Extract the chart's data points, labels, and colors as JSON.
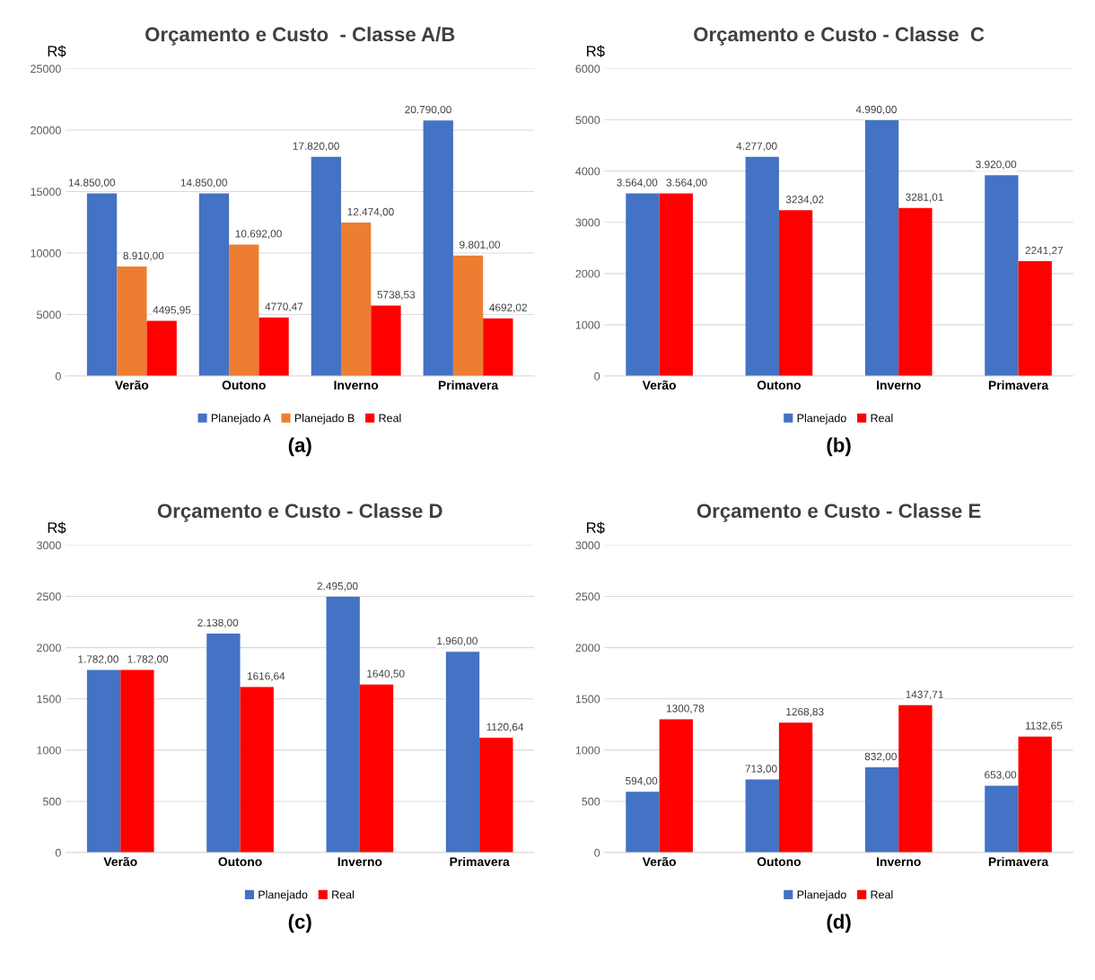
{
  "chart_data": [
    {
      "type": "bar",
      "title": "Orçamento e Custo  - Classe A/B",
      "ylabel": "R$",
      "categories": [
        "Verão",
        "Outono",
        "Inverno",
        "Primavera"
      ],
      "ylim": [
        0,
        25000
      ],
      "yticks": [
        0,
        5000,
        10000,
        15000,
        20000,
        25000
      ],
      "grid": "y",
      "legend": "bottom",
      "annotations": [
        "(a)"
      ],
      "series": [
        {
          "name": "Planejado A",
          "color": "#4472c4",
          "values": [
            14850,
            14850,
            17820,
            20790
          ],
          "value_labels": [
            "14.850,00",
            "14.850,00",
            "17.820,00",
            "20.790,00"
          ]
        },
        {
          "name": "Planejado B",
          "color": "#ed7d31",
          "values": [
            8910,
            10692,
            12474,
            9801
          ],
          "value_labels": [
            "8.910,00",
            "10.692,00",
            "12.474,00",
            "9.801,00"
          ]
        },
        {
          "name": "Real",
          "color": "#ff0000",
          "values": [
            4495.95,
            4770.47,
            5738.53,
            4692.02
          ],
          "value_labels": [
            "4495,95",
            "4770,47",
            "5738,53",
            "4692,02"
          ]
        }
      ]
    },
    {
      "type": "bar",
      "title": "Orçamento e Custo - Classe  C",
      "ylabel": "R$",
      "categories": [
        "Verão",
        "Outono",
        "Inverno",
        "Primavera"
      ],
      "ylim": [
        0,
        6000
      ],
      "yticks": [
        0,
        1000,
        2000,
        3000,
        4000,
        5000,
        6000
      ],
      "grid": "y",
      "legend": "bottom",
      "annotations": [
        "(b)"
      ],
      "series": [
        {
          "name": "Planejado",
          "color": "#4472c4",
          "values": [
            3564,
            4277,
            4990,
            3920
          ],
          "value_labels": [
            "3.564,00",
            "4.277,00",
            "4.990,00",
            "3.920,00"
          ]
        },
        {
          "name": "Real",
          "color": "#ff0000",
          "values": [
            3564,
            3234.02,
            3281.01,
            2241.27
          ],
          "value_labels": [
            "3.564,00",
            "3234,02",
            "3281,01",
            "2241,27"
          ]
        }
      ]
    },
    {
      "type": "bar",
      "title": "Orçamento e Custo - Classe D",
      "ylabel": "R$",
      "categories": [
        "Verão",
        "Outono",
        "Inverno",
        "Primavera"
      ],
      "ylim": [
        0,
        3000
      ],
      "yticks": [
        0,
        500,
        1000,
        1500,
        2000,
        2500,
        3000
      ],
      "grid": "y",
      "legend": "bottom",
      "annotations": [
        "(c)"
      ],
      "series": [
        {
          "name": "Planejado",
          "color": "#4472c4",
          "values": [
            1782,
            2138,
            2495,
            1960
          ],
          "value_labels": [
            "1.782,00",
            "2.138,00",
            "2.495,00",
            "1.960,00"
          ]
        },
        {
          "name": "Real",
          "color": "#ff0000",
          "values": [
            1782,
            1616.64,
            1640.5,
            1120.64
          ],
          "value_labels": [
            "1.782,00",
            "1616,64",
            "1640,50",
            "1120,64"
          ]
        }
      ]
    },
    {
      "type": "bar",
      "title": "Orçamento e Custo - Classe E",
      "ylabel": "R$",
      "categories": [
        "Verão",
        "Outono",
        "Inverno",
        "Primavera"
      ],
      "ylim": [
        0,
        3000
      ],
      "yticks": [
        0,
        500,
        1000,
        1500,
        2000,
        2500,
        3000
      ],
      "grid": "y",
      "legend": "bottom",
      "annotations": [
        "(d)"
      ],
      "series": [
        {
          "name": "Planejado",
          "color": "#4472c4",
          "values": [
            594,
            713,
            832,
            653
          ],
          "value_labels": [
            "594,00",
            "713,00",
            "832,00",
            "653,00"
          ]
        },
        {
          "name": "Real",
          "color": "#ff0000",
          "values": [
            1300.78,
            1268.83,
            1437.71,
            1132.65
          ],
          "value_labels": [
            "1300,78",
            "1268,83",
            "1437,71",
            "1132,65"
          ]
        }
      ]
    }
  ]
}
